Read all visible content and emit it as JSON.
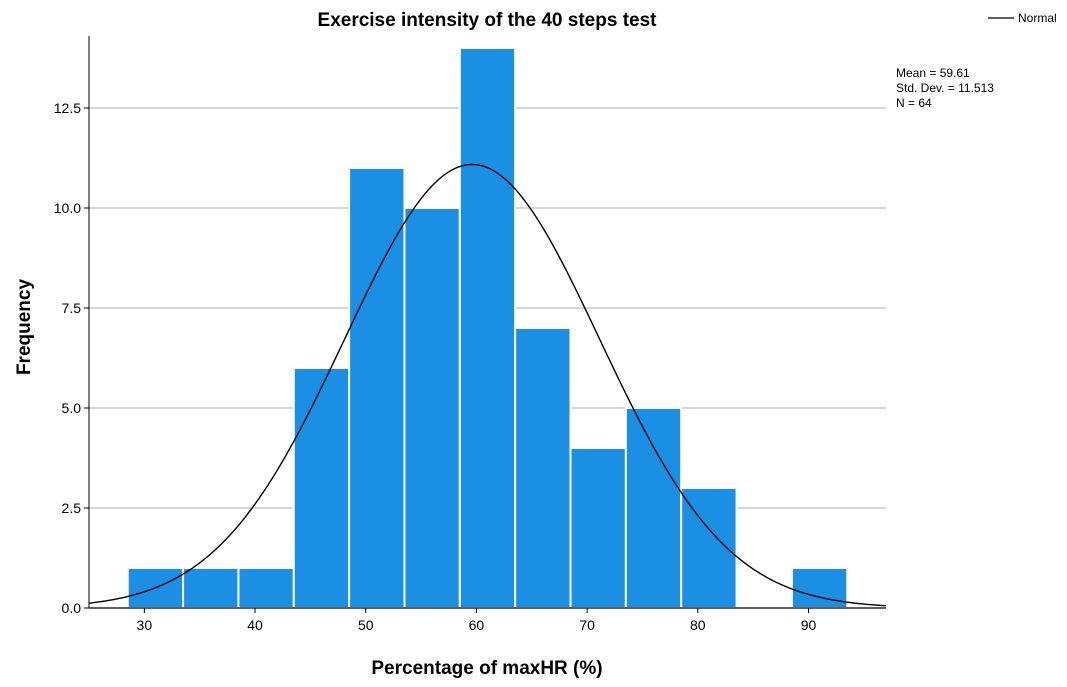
{
  "chart_data": {
    "type": "bar",
    "title": "Exercise intensity of the 40 steps test",
    "xlabel": "Percentage of maxHR (%)",
    "ylabel": "Frequency",
    "xlim": [
      25,
      97
    ],
    "ylim": [
      0,
      14.3
    ],
    "x_ticks": [
      30,
      40,
      50,
      60,
      70,
      80,
      90
    ],
    "x_tick_labels": [
      "30",
      "40",
      "50",
      "60",
      "70",
      "80",
      "90"
    ],
    "y_ticks": [
      0,
      2.5,
      5,
      7.5,
      10,
      12.5
    ],
    "y_tick_labels": [
      "0.0",
      "2.5",
      "5.0",
      "7.5",
      "10.0",
      "12.5"
    ],
    "grid": "horizontal",
    "bins": [
      {
        "start": 28.5,
        "end": 33.5,
        "count": 1
      },
      {
        "start": 33.5,
        "end": 38.5,
        "count": 1
      },
      {
        "start": 38.5,
        "end": 43.5,
        "count": 1
      },
      {
        "start": 43.5,
        "end": 48.5,
        "count": 6
      },
      {
        "start": 48.5,
        "end": 53.5,
        "count": 11
      },
      {
        "start": 53.5,
        "end": 58.5,
        "count": 10
      },
      {
        "start": 58.5,
        "end": 63.5,
        "count": 14
      },
      {
        "start": 63.5,
        "end": 68.5,
        "count": 7
      },
      {
        "start": 68.5,
        "end": 73.5,
        "count": 4
      },
      {
        "start": 73.5,
        "end": 78.5,
        "count": 5
      },
      {
        "start": 78.5,
        "end": 83.5,
        "count": 3
      },
      {
        "start": 83.5,
        "end": 88.5,
        "count": 0
      },
      {
        "start": 88.5,
        "end": 93.5,
        "count": 1
      }
    ],
    "normal_curve": {
      "mean": 59.61,
      "std_dev": 11.513,
      "n": 64,
      "bin_width": 5
    },
    "legend": {
      "position": "top-right",
      "entries": [
        "Normal"
      ]
    },
    "stats_text": [
      "Mean = 59.61",
      "Std. Dev. = 11.513",
      "N = 64"
    ],
    "colors": {
      "bar_fill": "#1a8fe3",
      "bar_edge": "#ffffff",
      "curve": "#000000",
      "grid": "#bdbdbd",
      "axis": "#000000",
      "text": "#000000"
    }
  }
}
